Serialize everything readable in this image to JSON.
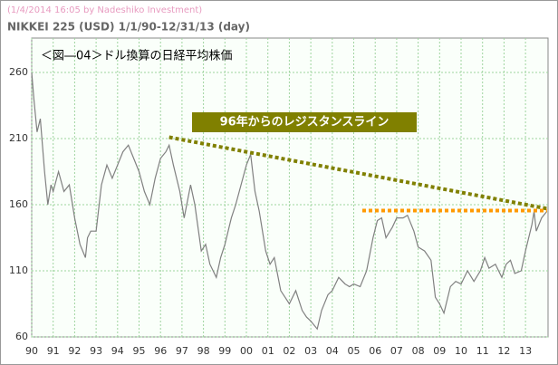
{
  "chart_data": {
    "type": "line",
    "credit": "(1/4/2014 16:05 by Nadeshiko Investment)",
    "title": "NIKKEI 225 (USD)  1/1/90-12/31/13 (day)",
    "annotations": [
      "＜図―04＞ドル換算の日経平均株価",
      "96年からのレジスタンスライン"
    ],
    "color": "#808080",
    "x": [
      1990.0,
      1990.1,
      1990.25,
      1990.4,
      1990.6,
      1990.75,
      1990.9,
      1991.0,
      1991.25,
      1991.5,
      1991.75,
      1992.0,
      1992.25,
      1992.5,
      1992.6,
      1992.75,
      1993.0,
      1993.25,
      1993.5,
      1993.75,
      1994.0,
      1994.25,
      1994.5,
      1994.75,
      1995.0,
      1995.25,
      1995.5,
      1995.75,
      1996.0,
      1996.25,
      1996.4,
      1996.6,
      1996.9,
      1997.1,
      1997.4,
      1997.6,
      1997.9,
      1998.1,
      1998.3,
      1998.6,
      1998.8,
      1999.0,
      1999.3,
      1999.5,
      1999.75,
      2000.0,
      2000.2,
      2000.4,
      2000.6,
      2000.9,
      2001.1,
      2001.3,
      2001.6,
      2001.8,
      2002.0,
      2002.3,
      2002.6,
      2002.8,
      2003.0,
      2003.3,
      2003.5,
      2003.8,
      2004.0,
      2004.3,
      2004.6,
      2004.8,
      2005.0,
      2005.3,
      2005.6,
      2005.9,
      2006.1,
      2006.3,
      2006.5,
      2006.8,
      2007.0,
      2007.3,
      2007.5,
      2007.8,
      2008.0,
      2008.3,
      2008.6,
      2008.8,
      2009.0,
      2009.2,
      2009.5,
      2009.75,
      2010.0,
      2010.3,
      2010.6,
      2010.9,
      2011.1,
      2011.3,
      2011.6,
      2011.9,
      2012.1,
      2012.3,
      2012.5,
      2012.8,
      2013.0,
      2013.3,
      2013.4,
      2013.5,
      2013.75,
      2014.0
    ],
    "values": [
      260,
      240,
      215,
      225,
      185,
      160,
      175,
      170,
      185,
      170,
      175,
      150,
      130,
      120,
      135,
      140,
      140,
      175,
      190,
      180,
      190,
      200,
      205,
      195,
      185,
      170,
      160,
      180,
      195,
      200,
      205,
      190,
      170,
      150,
      175,
      160,
      125,
      130,
      115,
      105,
      120,
      130,
      150,
      160,
      175,
      190,
      198,
      170,
      155,
      125,
      115,
      120,
      95,
      90,
      85,
      95,
      80,
      75,
      72,
      66,
      80,
      92,
      95,
      105,
      100,
      98,
      100,
      98,
      110,
      135,
      148,
      150,
      135,
      143,
      150,
      150,
      152,
      140,
      128,
      125,
      118,
      90,
      85,
      78,
      98,
      102,
      100,
      110,
      102,
      110,
      120,
      112,
      115,
      105,
      115,
      118,
      108,
      110,
      125,
      145,
      155,
      140,
      150,
      155
    ],
    "lines": [
      {
        "color": "#808000",
        "x": [
          1996.4,
          2014.0
        ],
        "y": [
          211,
          157
        ]
      },
      {
        "color": "#ff9900",
        "x": [
          2005.4,
          2014.0
        ],
        "y": [
          155.5,
          155.5
        ]
      }
    ],
    "xlim": [
      1990,
      2014.05
    ],
    "ylim": [
      60,
      286
    ],
    "yticks": [
      60,
      110,
      160,
      210,
      260
    ],
    "xticks": [
      {
        "value": 1990,
        "label": "90"
      },
      {
        "value": 1991,
        "label": "91"
      },
      {
        "value": 1992,
        "label": "92"
      },
      {
        "value": 1993,
        "label": "93"
      },
      {
        "value": 1994,
        "label": "94"
      },
      {
        "value": 1995,
        "label": "95"
      },
      {
        "value": 1996,
        "label": "96"
      },
      {
        "value": 1997,
        "label": "97"
      },
      {
        "value": 1998,
        "label": "98"
      },
      {
        "value": 1999,
        "label": "99"
      },
      {
        "value": 2000,
        "label": "00"
      },
      {
        "value": 2001,
        "label": "01"
      },
      {
        "value": 2002,
        "label": "02"
      },
      {
        "value": 2003,
        "label": "03"
      },
      {
        "value": 2004,
        "label": "04"
      },
      {
        "value": 2005,
        "label": "05"
      },
      {
        "value": 2006,
        "label": "06"
      },
      {
        "value": 2007,
        "label": "07"
      },
      {
        "value": 2008,
        "label": "08"
      },
      {
        "value": 2009,
        "label": "09"
      },
      {
        "value": 2010,
        "label": "10"
      },
      {
        "value": 2011,
        "label": "11"
      },
      {
        "value": 2012,
        "label": "12"
      },
      {
        "value": 2013,
        "label": "13"
      }
    ],
    "grid": true
  }
}
